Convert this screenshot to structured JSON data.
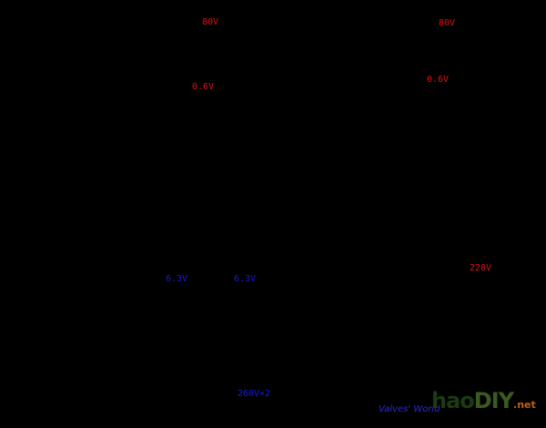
{
  "labels": [
    "80V",
    "80V",
    "0.6V",
    "0.6V",
    "220V",
    "6.3V",
    "6.3V",
    "260V×2"
  ],
  "watermark": "Valves' World",
  "logo": {
    "name": "hao",
    "brand": "DIY",
    "suffix": ".net"
  }
}
